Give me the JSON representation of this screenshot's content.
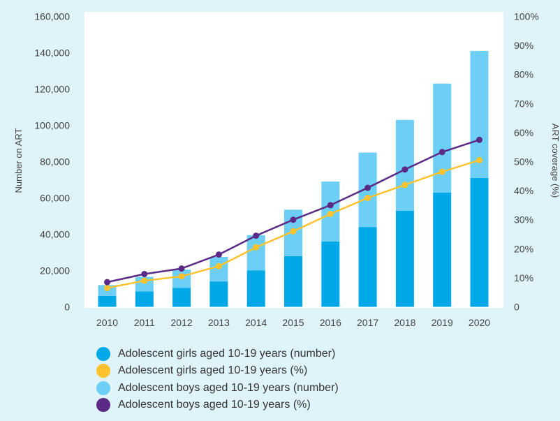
{
  "chart_data": {
    "type": "bar",
    "stacked": true,
    "categories": [
      "2010",
      "2011",
      "2012",
      "2013",
      "2014",
      "2015",
      "2016",
      "2017",
      "2018",
      "2019",
      "2020"
    ],
    "ylabel": "Number on ART",
    "y2label": "ART coverage (%)",
    "ylim": [
      0,
      160000
    ],
    "y2lim": [
      0,
      100
    ],
    "yticks": [
      "0",
      "20,000",
      "40,000",
      "60,000",
      "80,000",
      "100,000",
      "120,000",
      "140,000",
      "160,000"
    ],
    "y2ticks": [
      "0",
      "10%",
      "20%",
      "30%",
      "40%",
      "50%",
      "60%",
      "70%",
      "80%",
      "90%",
      "100%"
    ],
    "bar_series": [
      {
        "name": "Adolescent girls aged 10-19 years (number)",
        "color": "#00a8e8",
        "values": [
          6000,
          8500,
          10500,
          14000,
          20000,
          28000,
          36000,
          44000,
          53000,
          63000,
          71000
        ]
      },
      {
        "name": "Adolescent boys aged 10-19 years (number)",
        "color": "#6dcff6",
        "values": [
          6000,
          8000,
          10000,
          13500,
          19500,
          25500,
          33000,
          41000,
          50000,
          60000,
          70000
        ]
      }
    ],
    "line_series": [
      {
        "name": "Adolescent girls aged 10-19 years (%)",
        "color": "#fcc32e",
        "axis": "right",
        "values": [
          6.5,
          9,
          10.5,
          14,
          20.5,
          26,
          32,
          37.5,
          42,
          46.5,
          50.5
        ]
      },
      {
        "name": "Adolescent boys aged 10-19 years (%)",
        "color": "#5b2a86",
        "axis": "right",
        "values": [
          8.5,
          11.3,
          13.2,
          18,
          24.5,
          30,
          35,
          41,
          47.3,
          53.3,
          57.5
        ]
      }
    ],
    "legend_order": [
      0,
      2,
      1,
      3
    ],
    "legend_position": "bottom-left",
    "grid": false
  }
}
